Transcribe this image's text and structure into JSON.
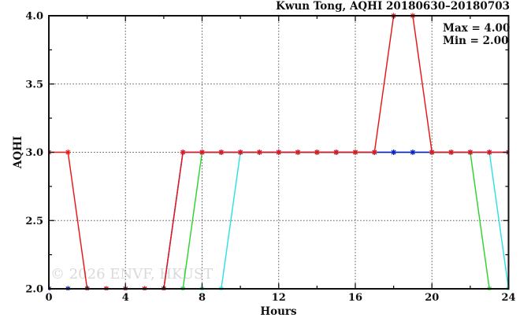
{
  "title": "Kwun Tong, AQHI 20180630–20180703",
  "annotation": {
    "max_label": "Max = 4.00",
    "min_label": "Min = 2.00"
  },
  "watermark": "© 2026 ENVF, HKUST",
  "colors": {
    "axis": "#101010",
    "grid": "#555555",
    "background": "#ffffff",
    "watermark": "#c9c9c9"
  },
  "chart_data": {
    "type": "line",
    "title": "Kwun Tong, AQHI 20180630–20180703",
    "xlabel": "Hours",
    "ylabel": "AQHI",
    "xlim": [
      0,
      24
    ],
    "ylim": [
      2.0,
      4.0
    ],
    "x_major_ticks": [
      0,
      4,
      8,
      12,
      16,
      20,
      24
    ],
    "x_tick_labels": [
      "0",
      "4",
      "8",
      "12",
      "16",
      "20",
      "24"
    ],
    "x_minor_ticks": [
      2,
      6,
      10,
      14,
      18,
      22
    ],
    "y_major_ticks": [
      2.0,
      2.5,
      3.0,
      3.5,
      4.0
    ],
    "y_tick_labels": [
      "2.0",
      "2.5",
      "3.0",
      "3.5",
      "4.0"
    ],
    "y_minor_ticks": [
      2.25,
      2.75,
      3.25,
      3.75
    ],
    "grid": {
      "style": "dotted",
      "vertical_at": [
        4,
        8,
        12,
        16,
        20
      ],
      "horizontal_at": [
        2.5,
        3.0,
        3.5
      ]
    },
    "legend_position": "none",
    "stats": {
      "max": 4.0,
      "min": 2.0
    },
    "marker": "asterisk",
    "series": [
      {
        "name": "series-cyan",
        "color": "#2ee0e6",
        "x": [
          0,
          1,
          2,
          3,
          4,
          5,
          6,
          7,
          8,
          9,
          10,
          11,
          12,
          13,
          14,
          15,
          16,
          17,
          18,
          19,
          20,
          21,
          22,
          23,
          24
        ],
        "values": [
          2,
          2,
          2,
          2,
          2,
          2,
          2,
          2,
          2,
          2,
          3,
          3,
          3,
          3,
          3,
          3,
          3,
          3,
          3,
          3,
          3,
          3,
          3,
          3,
          2
        ]
      },
      {
        "name": "series-green",
        "color": "#2ed42e",
        "x": [
          0,
          1,
          2,
          3,
          4,
          5,
          6,
          7,
          8,
          9,
          10,
          11,
          12,
          13,
          14,
          15,
          16,
          17,
          18,
          19,
          20,
          21,
          22,
          23
        ],
        "values": [
          2,
          2,
          2,
          2,
          2,
          2,
          2,
          2,
          3,
          3,
          3,
          3,
          3,
          3,
          3,
          3,
          3,
          3,
          3,
          3,
          3,
          3,
          3,
          2
        ]
      },
      {
        "name": "series-blue",
        "color": "#1616d0",
        "x": [
          0,
          1,
          2,
          3,
          4,
          5,
          6,
          7,
          8,
          9,
          10,
          11,
          12,
          13,
          14,
          15,
          16,
          17,
          18,
          19,
          20,
          21,
          22,
          23,
          24
        ],
        "values": [
          2,
          2,
          2,
          2,
          2,
          2,
          2,
          3,
          3,
          3,
          3,
          3,
          3,
          3,
          3,
          3,
          3,
          3,
          3,
          3,
          3,
          3,
          3,
          3,
          3
        ]
      },
      {
        "name": "series-red",
        "color": "#e81717",
        "x": [
          0,
          1,
          2,
          3,
          4,
          5,
          6,
          7,
          8,
          9,
          10,
          11,
          12,
          13,
          14,
          15,
          16,
          17,
          18,
          19,
          20,
          21,
          22,
          23,
          24
        ],
        "values": [
          3,
          3,
          2,
          2,
          2,
          2,
          2,
          3,
          3,
          3,
          3,
          3,
          3,
          3,
          3,
          3,
          3,
          3,
          4,
          4,
          3,
          3,
          3,
          3,
          3
        ]
      }
    ]
  }
}
